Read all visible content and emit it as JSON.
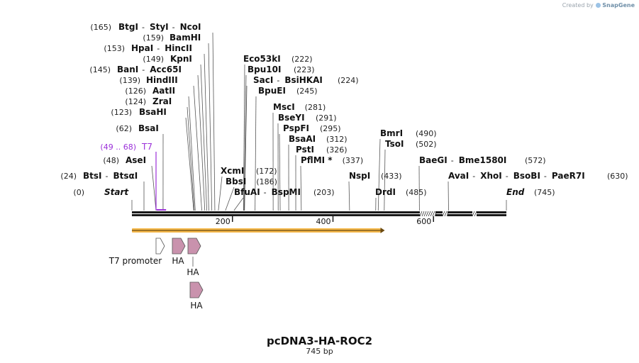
{
  "branding": {
    "created_by": "Created by",
    "product": "SnapGene"
  },
  "map": {
    "name": "pcDNA3-HA-ROC2",
    "length_label": "745 bp",
    "length": 745,
    "scale": {
      "ticks": [
        200,
        400,
        600
      ],
      "tick_labels": [
        "200",
        "400",
        "600"
      ]
    },
    "ends": [
      {
        "pos": 0,
        "pos_label": "(0)",
        "name": "Start"
      },
      {
        "pos": 745,
        "pos_label": "(745)",
        "name": "End"
      }
    ],
    "enzyme_rows": [
      {
        "pos_label": "(165)",
        "names": [
          "BtgI",
          "StyI",
          "NcoI"
        ],
        "cut": 165
      },
      {
        "pos_label": "(159)",
        "names": [
          "BamHI"
        ],
        "cut": 159
      },
      {
        "pos_label": "(153)",
        "names": [
          "HpaI",
          "HincII"
        ],
        "cut": 153
      },
      {
        "pos_label": "(149)",
        "names": [
          "KpnI"
        ],
        "cut": 149
      },
      {
        "pos_label": "(145)",
        "names": [
          "BanI",
          "Acc65I"
        ],
        "cut": 145
      },
      {
        "pos_label": "(139)",
        "names": [
          "HindIII"
        ],
        "cut": 139
      },
      {
        "pos_label": "(126)",
        "names": [
          "AatII"
        ],
        "cut": 126
      },
      {
        "pos_label": "(124)",
        "names": [
          "ZraI"
        ],
        "cut": 124
      },
      {
        "pos_label": "(123)",
        "names": [
          "BsaHI"
        ],
        "cut": 123
      },
      {
        "pos_label": "(62)",
        "names": [
          "BsaI"
        ],
        "cut": 62
      },
      {
        "pos_label": "(48)",
        "names": [
          "AseI"
        ],
        "cut": 48
      },
      {
        "pos_label": "(24)",
        "names": [
          "BtsI",
          "BtsαI"
        ],
        "cut": 24
      },
      {
        "pos_label": "(222)",
        "names": [
          "Eco53kI"
        ],
        "cut": 222
      },
      {
        "pos_label": "(223)",
        "names": [
          "Bpu10I"
        ],
        "cut": 223
      },
      {
        "pos_label": "(224)",
        "names": [
          "SacI",
          "BsiHKAI"
        ],
        "cut": 224
      },
      {
        "pos_label": "(245)",
        "names": [
          "BpuEI"
        ],
        "cut": 245
      },
      {
        "pos_label": "(281)",
        "names": [
          "MscI"
        ],
        "cut": 281
      },
      {
        "pos_label": "(291)",
        "names": [
          "BseYI"
        ],
        "cut": 291
      },
      {
        "pos_label": "(295)",
        "names": [
          "PspFI"
        ],
        "cut": 295
      },
      {
        "pos_label": "(312)",
        "names": [
          "BsaAI"
        ],
        "cut": 312
      },
      {
        "pos_label": "(326)",
        "names": [
          "PstI"
        ],
        "cut": 326
      },
      {
        "pos_label": "(337)",
        "names": [
          "PflMI *"
        ],
        "cut": 337
      },
      {
        "pos_label": "(172)",
        "names": [
          "XcmI"
        ],
        "cut": 172
      },
      {
        "pos_label": "(186)",
        "names": [
          "BbsI"
        ],
        "cut": 186
      },
      {
        "pos_label": "(203)",
        "names": [
          "BfuAI",
          "BspMI"
        ],
        "cut": 203
      },
      {
        "pos_label": "(433)",
        "names": [
          "NspI"
        ],
        "cut": 433
      },
      {
        "pos_label": "(490)",
        "names": [
          "BmrI"
        ],
        "cut": 490
      },
      {
        "pos_label": "(502)",
        "names": [
          "TsoI"
        ],
        "cut": 502
      },
      {
        "pos_label": "(485)",
        "names": [
          "DrdI"
        ],
        "cut": 485
      },
      {
        "pos_label": "(572)",
        "names": [
          "BaeGI",
          "Bme1580I"
        ],
        "cut": 572
      },
      {
        "pos_label": "(630)",
        "names": [
          "AvaI",
          "XhoI",
          "BsoBI",
          "PaeR7I"
        ],
        "cut": 630
      }
    ],
    "primer": {
      "name": "T7",
      "range_label": "(49 .. 68)",
      "start": 49,
      "end": 68,
      "color": "#9b30d9"
    },
    "orf": {
      "start": 0,
      "end": 503,
      "color": "#f5b84a"
    },
    "features": [
      {
        "name": "T7 promoter",
        "start": 49,
        "end": 68,
        "type": "promoter",
        "color": "#ffffff"
      },
      {
        "name": "HA",
        "start": 81,
        "end": 107,
        "type": "tag",
        "color": "#c992ad"
      },
      {
        "name": "HA",
        "start": 111,
        "end": 137,
        "type": "tag",
        "color": "#c992ad"
      },
      {
        "name": "HA",
        "start": 116,
        "end": 142,
        "type": "tag",
        "color": "#c992ad"
      }
    ],
    "colors": {
      "backbone": "#1a1a1a",
      "enzyme_text": "#111111",
      "pos_text": "#222222",
      "leader": "#555555"
    }
  }
}
